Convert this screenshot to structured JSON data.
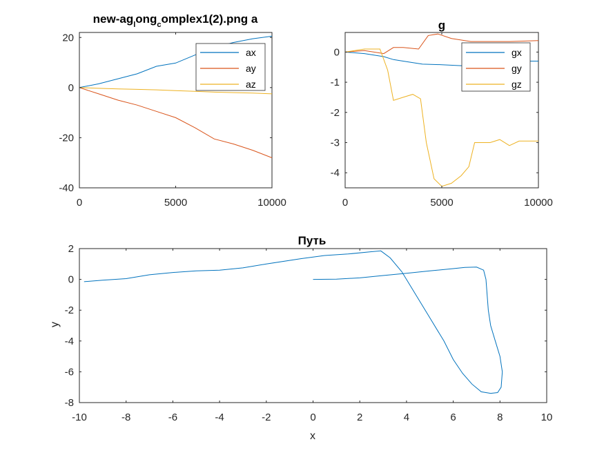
{
  "chart_data": [
    {
      "id": "a",
      "type": "line",
      "title": "new-ag_long_complex1(2).png a",
      "title_parts": {
        "p1": "new-ag",
        "s1": "l",
        "p2": "ong",
        "s2": "c",
        "p3": "omplex1(2).png a"
      },
      "xlim": [
        0,
        10000
      ],
      "ylim": [
        -40,
        22
      ],
      "xticks": [
        0,
        5000,
        10000
      ],
      "yticks": [
        20,
        0,
        -20,
        -40
      ],
      "legend": "top-right",
      "series": [
        {
          "name": "ax",
          "color": "#0072BD",
          "x": [
            0,
            1000,
            2000,
            3000,
            4000,
            5000,
            6000,
            7000,
            8000,
            9000,
            10000
          ],
          "y": [
            0,
            1.5,
            3.5,
            5.5,
            8.5,
            9.8,
            13,
            16,
            18,
            19.5,
            20.5
          ]
        },
        {
          "name": "ay",
          "color": "#D95319",
          "x": [
            0,
            1000,
            2000,
            3000,
            4000,
            5000,
            6000,
            7000,
            8000,
            9000,
            10000
          ],
          "y": [
            0,
            -2.5,
            -5,
            -7,
            -9.5,
            -12,
            -16,
            -20.5,
            -22.5,
            -25,
            -28
          ]
        },
        {
          "name": "az",
          "color": "#EDB120",
          "x": [
            0,
            1000,
            2000,
            3000,
            4000,
            5000,
            6000,
            7000,
            8000,
            9000,
            10000
          ],
          "y": [
            0,
            -0.3,
            -0.5,
            -0.7,
            -0.9,
            -1.2,
            -1.5,
            -1.8,
            -2,
            -2.2,
            -2.5
          ]
        }
      ]
    },
    {
      "id": "g",
      "type": "line",
      "title": "g",
      "xlim": [
        0,
        10000
      ],
      "ylim": [
        -4.5,
        0.65
      ],
      "xticks": [
        0,
        5000,
        10000
      ],
      "yticks": [
        0,
        -1,
        -2,
        -3,
        -4
      ],
      "legend": "top-right",
      "series": [
        {
          "name": "gx",
          "color": "#0072BD",
          "x": [
            0,
            1000,
            2000,
            2500,
            3000,
            4000,
            5000,
            6000,
            7000,
            8000,
            9000,
            10000
          ],
          "y": [
            0,
            -0.05,
            -0.15,
            -0.25,
            -0.3,
            -0.4,
            -0.42,
            -0.45,
            -0.4,
            -0.35,
            -0.3,
            -0.3
          ]
        },
        {
          "name": "gy",
          "color": "#D95319",
          "x": [
            0,
            1000,
            2000,
            2500,
            3000,
            3800,
            4300,
            4800,
            5500,
            6500,
            7500,
            8500,
            10000
          ],
          "y": [
            0,
            0.05,
            -0.05,
            0.15,
            0.15,
            0.1,
            0.55,
            0.6,
            0.45,
            0.35,
            0.35,
            0.35,
            0.38
          ]
        },
        {
          "name": "gz",
          "color": "#EDB120",
          "x": [
            0,
            1000,
            1800,
            2200,
            2500,
            3000,
            3500,
            3900,
            4200,
            4600,
            5000,
            5500,
            6000,
            6400,
            6700,
            7500,
            8000,
            8500,
            9000,
            10000
          ],
          "y": [
            0,
            0.1,
            0.1,
            -0.6,
            -1.6,
            -1.5,
            -1.4,
            -1.55,
            -3,
            -4.2,
            -4.45,
            -4.35,
            -4.1,
            -3.8,
            -3,
            -3,
            -2.9,
            -3.1,
            -2.95,
            -2.95
          ]
        }
      ]
    },
    {
      "id": "path",
      "type": "line",
      "title": "Путь",
      "xlabel": "x",
      "ylabel": "y",
      "xlim": [
        -10,
        10
      ],
      "ylim": [
        -8,
        2
      ],
      "xticks": [
        -10,
        -8,
        -6,
        -4,
        -2,
        0,
        2,
        4,
        6,
        8,
        10
      ],
      "yticks": [
        2,
        0,
        -2,
        -4,
        -6,
        -8
      ],
      "series": [
        {
          "name": "path",
          "color": "#0072BD",
          "x": [
            0,
            1,
            2,
            3,
            4,
            5,
            6,
            6.5,
            7,
            7.3,
            7.4,
            7.45,
            7.5,
            7.6,
            7.8,
            8,
            8.1,
            8.05,
            7.9,
            7.6,
            7.2,
            6.8,
            6.4,
            6.0,
            5.6,
            5.0,
            4.4,
            3.8,
            3.3,
            2.9,
            2.5,
            1.5,
            0.5,
            -0.5,
            -2,
            -3,
            -4,
            -5,
            -6,
            -7,
            -8,
            -9,
            -9.8
          ],
          "y": [
            0,
            0.02,
            0.1,
            0.25,
            0.4,
            0.55,
            0.7,
            0.78,
            0.8,
            0.6,
            0.0,
            -1,
            -2,
            -3,
            -4,
            -5,
            -6,
            -7,
            -7.35,
            -7.4,
            -7.3,
            -6.8,
            -6.1,
            -5.2,
            -4,
            -2.5,
            -1,
            0.5,
            1.4,
            1.85,
            1.8,
            1.65,
            1.55,
            1.35,
            1.0,
            0.75,
            0.6,
            0.55,
            0.45,
            0.3,
            0.05,
            -0.05,
            -0.15
          ]
        }
      ]
    }
  ]
}
